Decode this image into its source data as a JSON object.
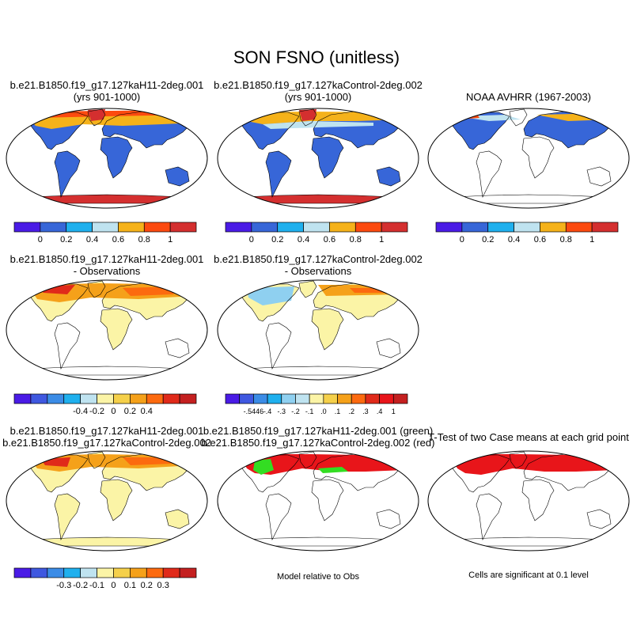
{
  "title": "SON FSNO (unitless)",
  "panels": [
    {
      "title_lines": [
        "b.e21.B1850.f19_g17.127kaH11-2deg.001",
        "(yrs 901-1000)"
      ],
      "fill": "abs_h11"
    },
    {
      "title_lines": [
        "b.e21.B1850.f19_g17.127kaControl-2deg.002",
        "(yrs 901-1000)"
      ],
      "fill": "abs_ctrl"
    },
    {
      "title_lines": [
        "NOAA AVHRR (1967-2003)"
      ],
      "fill": "abs_obs"
    },
    {
      "title_lines": [
        "b.e21.B1850.f19_g17.127kaH11-2deg.001",
        "- Observations"
      ],
      "fill": "diff_h11"
    },
    {
      "title_lines": [
        "b.e21.B1850.f19_g17.127kaControl-2deg.002",
        "- Observations"
      ],
      "fill": "diff_ctrl"
    },
    {
      "title_lines": [
        "b.e21.B1850.f19_g17.127kaH11-2deg.001",
        "b.e21.B1850.f19_g17.127kaControl-2deg.002"
      ],
      "fill": "diff_cases"
    },
    {
      "title_lines": [
        "b.e21.B1850.f19_g17.127kaH11-2deg.001 (green)",
        "b.e21.B1850.f19_g17.127kaControl-2deg.002 (red)"
      ],
      "fill": "rel_obs"
    },
    {
      "title_lines": [
        "T-Test of two Case means at each grid point"
      ],
      "fill": "ttest"
    }
  ],
  "colorbars": [
    {
      "colors": [
        "#4a1be6",
        "#3766d8",
        "#1fb0ee",
        "#bfe3f0",
        "#f5b21a",
        "#fc4a0f",
        "#d42f2f"
      ],
      "labels": [
        "0",
        "0.2",
        "0.4",
        "0.6",
        "0.8",
        "1"
      ]
    },
    {
      "colors": [
        "#4a1be6",
        "#3766d8",
        "#1fb0ee",
        "#bfe3f0",
        "#f5b21a",
        "#fc4a0f",
        "#d42f2f"
      ],
      "labels": [
        "0",
        "0.2",
        "0.4",
        "0.6",
        "0.8",
        "1"
      ]
    },
    {
      "colors": [
        "#4a1be6",
        "#3766d8",
        "#1fb0ee",
        "#bfe3f0",
        "#f5b21a",
        "#fc4a0f",
        "#d42f2f"
      ],
      "labels": [
        "0",
        "0.2",
        "0.4",
        "0.6",
        "0.8",
        "1"
      ]
    },
    {
      "colors": [
        "#4a1be6",
        "#3f58e0",
        "#3b8ce6",
        "#1fb0ee",
        "#bfe3f0",
        "#fbf4a6",
        "#f5d04a",
        "#f5a11a",
        "#fc6a0f",
        "#e02a1a",
        "#c42020"
      ],
      "labels": [
        "-0.4",
        "-0.2",
        "0",
        "0.2",
        "0.4"
      ]
    },
    {
      "colors": [
        "#4a1be6",
        "#3f58e0",
        "#3b8ce6",
        "#1fb0ee",
        "#8fd0f0",
        "#bfe3f0",
        "#fbf4a6",
        "#f5d04a",
        "#f5a11a",
        "#fc6a0f",
        "#e02a1a",
        "#e8151a",
        "#c42020"
      ],
      "labels": [
        "-.5446",
        "-.4",
        "-.3",
        "-.2",
        "-.1",
        ".0",
        ".1",
        ".2",
        ".3",
        ".4",
        "1"
      ]
    },
    {
      "colors": [
        "#4a1be6",
        "#3f58e0",
        "#3b8ce6",
        "#1fb0ee",
        "#bfe3f0",
        "#fbf4a6",
        "#f5d04a",
        "#f5a11a",
        "#fc6a0f",
        "#e02a1a",
        "#c42020"
      ],
      "labels": [
        "-0.3",
        "-0.2",
        "-0.1",
        "0",
        "0.1",
        "0.2",
        "0.3"
      ]
    }
  ],
  "notes": {
    "model_relative": "Model relative to Obs",
    "significance": "Cells are significant at 0.1 level"
  }
}
